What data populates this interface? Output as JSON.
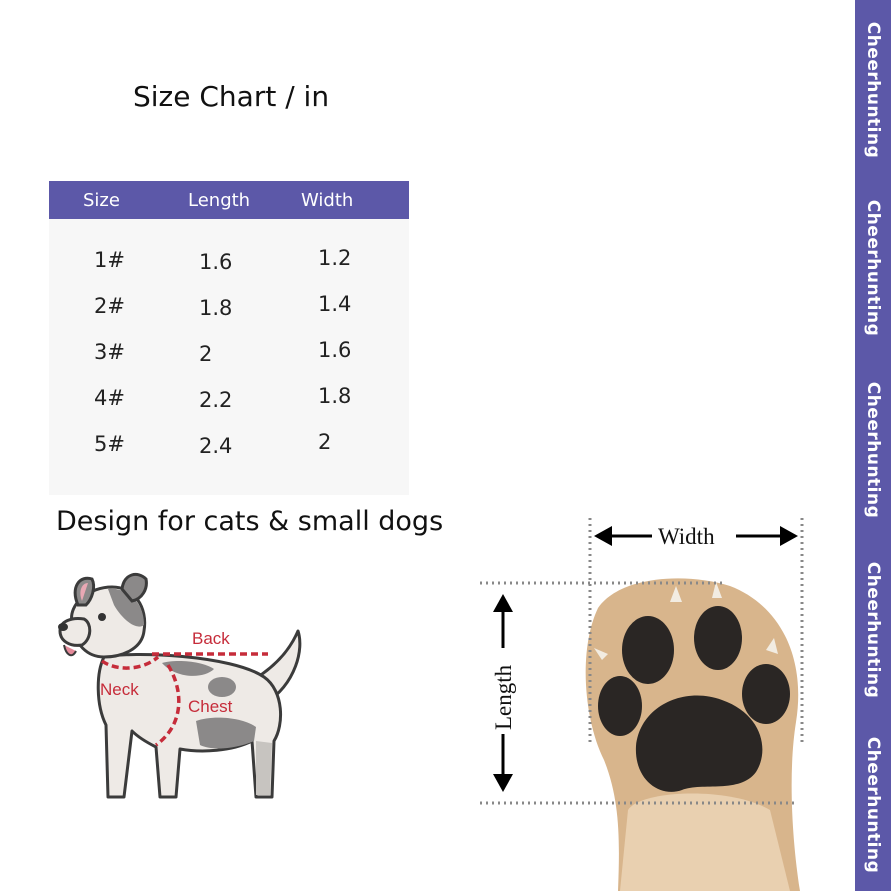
{
  "title": "Size Chart / in",
  "table": {
    "headers": [
      "Size",
      "Length",
      "Width"
    ],
    "rows": [
      [
        "1#",
        "1.6",
        "1.2"
      ],
      [
        "2#",
        "1.8",
        "1.4"
      ],
      [
        "3#",
        "2",
        "1.6"
      ],
      [
        "4#",
        "2.2",
        "1.8"
      ],
      [
        "5#",
        "2.4",
        "2"
      ]
    ]
  },
  "subtitle": "Design for cats  & small dogs",
  "dog_labels": {
    "back": "Back",
    "neck": "Neck",
    "chest": "Chest"
  },
  "paw_labels": {
    "width": "Width",
    "length": "Length"
  },
  "brand": [
    "Cheerhunting",
    "Cheerhunting",
    "Cheerhunting",
    "Cheerhunting",
    "Cheerhunting"
  ],
  "colors": {
    "accent": "#5c58a8",
    "measure_line": "#c62c3a"
  }
}
